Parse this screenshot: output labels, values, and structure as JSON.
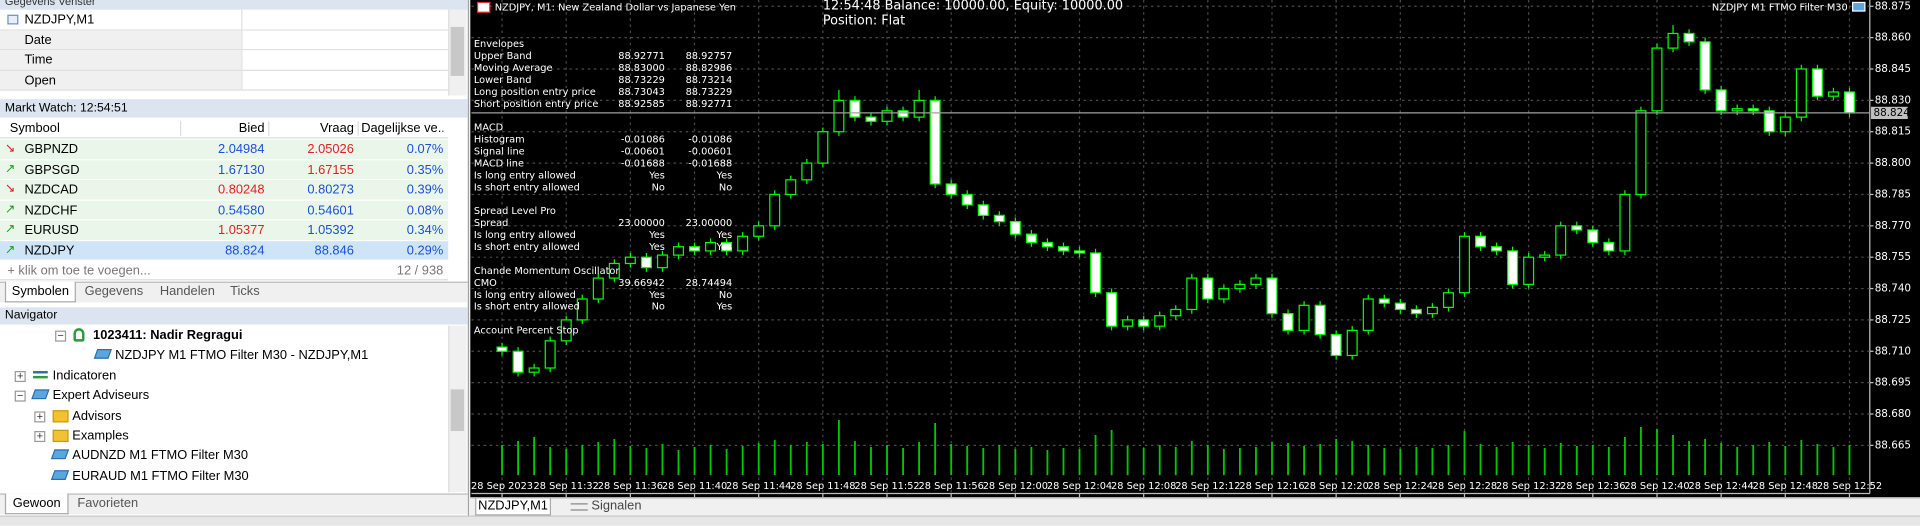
{
  "data_window": {
    "title": "Gegevens Venster",
    "symbol": "NZDJPY,M1",
    "rows": [
      "Date",
      "Time",
      "Open"
    ]
  },
  "market_watch": {
    "title": "Markt Watch: 12:54:51",
    "columns": [
      "Symbool",
      "Bied",
      "Vraag",
      "Dagelijkse ve..."
    ],
    "rows": [
      {
        "symbol": "GBPNZD",
        "bid": "2.04984",
        "ask": "2.05026",
        "change": "0.07%",
        "direction": "down",
        "bid_color": "#1a4fd6",
        "ask_color": "#e02020"
      },
      {
        "symbol": "GBPSGD",
        "bid": "1.67130",
        "ask": "1.67155",
        "change": "0.35%",
        "direction": "up",
        "bid_color": "#1a4fd6",
        "ask_color": "#e02020"
      },
      {
        "symbol": "NZDCAD",
        "bid": "0.80248",
        "ask": "0.80273",
        "change": "0.39%",
        "direction": "down",
        "bid_color": "#e02020",
        "ask_color": "#1a4fd6"
      },
      {
        "symbol": "NZDCHF",
        "bid": "0.54580",
        "ask": "0.54601",
        "change": "0.08%",
        "direction": "up",
        "bid_color": "#1a4fd6",
        "ask_color": "#1a4fd6"
      },
      {
        "symbol": "EURUSD",
        "bid": "1.05377",
        "ask": "1.05392",
        "change": "0.34%",
        "direction": "up",
        "bid_color": "#e02020",
        "ask_color": "#1a4fd6"
      },
      {
        "symbol": "NZDJPY",
        "bid": "88.824",
        "ask": "88.846",
        "change": "0.29%",
        "direction": "up",
        "bid_color": "#1a4fd6",
        "ask_color": "#1a4fd6",
        "selected": true
      }
    ],
    "add_row": "+ klik om toe te voegen...",
    "count": "12 / 938",
    "tabs": [
      "Symbolen",
      "Gegevens",
      "Handelen",
      "Ticks"
    ],
    "active_tab": 0
  },
  "navigator": {
    "title": "Navigator",
    "items": [
      {
        "label": "1023411: Nadir Regragui",
        "level": 2,
        "icon": "account",
        "expander": "minus",
        "bold": true
      },
      {
        "label": "NZDJPY  M1 FTMO Filter M30 - NZDJPY,M1",
        "level": 3,
        "icon": "expert"
      },
      {
        "label": "Indicatoren",
        "level": 0,
        "icon": "indicator",
        "expander": "plus"
      },
      {
        "label": "Expert Adviseurs",
        "level": 0,
        "icon": "expert",
        "expander": "minus"
      },
      {
        "label": "Advisors",
        "level": 1,
        "icon": "folder",
        "expander": "plus"
      },
      {
        "label": "Examples",
        "level": 1,
        "icon": "folder",
        "expander": "plus"
      },
      {
        "label": "AUDNZD  M1 FTMO Filter M30",
        "level": 1,
        "icon": "expert"
      },
      {
        "label": "EURAUD  M1 FTMO Filter M30",
        "level": 1,
        "icon": "expert"
      }
    ],
    "tabs": [
      "Gewoon",
      "Favorieten"
    ],
    "active_tab": 0
  },
  "bottom_tabs": [
    "NZDJPY,M1",
    "Signalen"
  ],
  "chart": {
    "type": "candlestick",
    "title": "NZDJPY, M1:  New Zealand Dollar vs Japanese Yen",
    "status": "12:54:48 Balance: 10000.00, Equity: 10000.00",
    "position": "Position: Flat",
    "expert": "NZDJPY  M1 FTMO Filter M30",
    "bull_color": "#000000",
    "bear_color": "#ffffff",
    "wick_color": "#00ff00",
    "volume_color": "#00c800",
    "background": "#000000",
    "grid": true,
    "ylim": [
      88.642,
      88.878
    ],
    "yticks": [
      88.875,
      {
        "value": 88.86,
        "label": "88.860"
      },
      88.845,
      {
        "value": 88.83,
        "label": "88.830"
      },
      88.815,
      {
        "value": 88.8,
        "label": "88.800"
      },
      88.785,
      {
        "value": 88.77,
        "label": "88.770"
      },
      88.755,
      {
        "value": 88.74,
        "label": "88.740"
      },
      88.725,
      {
        "value": 88.71,
        "label": "88.710"
      },
      88.695,
      {
        "value": 88.68,
        "label": "88.680"
      },
      88.665
    ],
    "bid": 88.824,
    "categories": [
      "28 Sep 2023",
      null,
      null,
      null,
      "28 Sep 11:32",
      null,
      null,
      null,
      "28 Sep 11:36",
      null,
      null,
      null,
      "28 Sep 11:40",
      null,
      null,
      null,
      "28 Sep 11:44",
      null,
      null,
      null,
      "28 Sep 11:48",
      null,
      null,
      null,
      "28 Sep 11:52",
      null,
      null,
      null,
      "28 Sep 11:56",
      null,
      null,
      null,
      "28 Sep 12:00",
      null,
      null,
      null,
      "28 Sep 12:04",
      null,
      null,
      null,
      "28 Sep 12:08",
      null,
      null,
      null,
      "28 Sep 12:12",
      null,
      null,
      null,
      "28 Sep 12:16",
      null,
      null,
      null,
      "28 Sep 12:20",
      null,
      null,
      null,
      "28 Sep 12:24",
      null,
      null,
      null,
      "28 Sep 12:28",
      null,
      null,
      null,
      "28 Sep 12:32",
      null,
      null,
      null,
      "28 Sep 12:36",
      null,
      null,
      null,
      "28 Sep 12:40",
      null,
      null,
      null,
      "28 Sep 12:44",
      null,
      null,
      null,
      "28 Sep 12:48",
      null,
      null,
      null,
      "28 Sep 12:52"
    ],
    "candles": [
      [
        88.712,
        88.714,
        88.708,
        88.71
      ],
      [
        88.71,
        88.712,
        88.698,
        88.7
      ],
      [
        88.7,
        88.704,
        88.698,
        88.702
      ],
      [
        88.702,
        88.717,
        88.7,
        88.715
      ],
      [
        88.715,
        88.727,
        88.713,
        88.725
      ],
      [
        88.725,
        88.737,
        88.723,
        88.735
      ],
      [
        88.735,
        88.747,
        88.733,
        88.745
      ],
      [
        88.745,
        88.754,
        88.743,
        88.752
      ],
      [
        88.752,
        88.757,
        88.75,
        88.755
      ],
      [
        88.755,
        88.757,
        88.748,
        88.75
      ],
      [
        88.75,
        88.758,
        88.748,
        88.756
      ],
      [
        88.756,
        88.762,
        88.754,
        88.76
      ],
      [
        88.76,
        88.762,
        88.756,
        88.758
      ],
      [
        88.758,
        88.764,
        88.756,
        88.762
      ],
      [
        88.762,
        88.764,
        88.756,
        88.758
      ],
      [
        88.758,
        88.767,
        88.756,
        88.765
      ],
      [
        88.765,
        88.772,
        88.763,
        88.77
      ],
      [
        88.77,
        88.787,
        88.768,
        88.785
      ],
      [
        88.785,
        88.794,
        88.783,
        88.792
      ],
      [
        88.792,
        88.802,
        88.79,
        88.8
      ],
      [
        88.8,
        88.817,
        88.798,
        88.815
      ],
      [
        88.815,
        88.835,
        88.813,
        88.83
      ],
      [
        88.83,
        88.832,
        88.82,
        88.822
      ],
      [
        88.822,
        88.824,
        88.818,
        88.82
      ],
      [
        88.82,
        88.827,
        88.818,
        88.825
      ],
      [
        88.825,
        88.827,
        88.82,
        88.822
      ],
      [
        88.822,
        88.835,
        88.82,
        88.83
      ],
      [
        88.83,
        88.832,
        88.788,
        88.79
      ],
      [
        88.79,
        88.792,
        88.783,
        88.785
      ],
      [
        88.785,
        88.787,
        88.778,
        88.78
      ],
      [
        88.78,
        88.782,
        88.773,
        88.775
      ],
      [
        88.775,
        88.777,
        88.77,
        88.772
      ],
      [
        88.772,
        88.774,
        88.764,
        88.766
      ],
      [
        88.766,
        88.768,
        88.76,
        88.762
      ],
      [
        88.762,
        88.764,
        88.758,
        88.76
      ],
      [
        88.76,
        88.762,
        88.756,
        88.758
      ],
      [
        88.758,
        88.76,
        88.755,
        88.757
      ],
      [
        88.757,
        88.759,
        88.736,
        88.738
      ],
      [
        88.738,
        88.74,
        88.72,
        88.722
      ],
      [
        88.722,
        88.727,
        88.72,
        88.725
      ],
      [
        88.725,
        88.727,
        88.72,
        88.722
      ],
      [
        88.722,
        88.729,
        88.72,
        88.727
      ],
      [
        88.727,
        88.732,
        88.725,
        88.73
      ],
      [
        88.73,
        88.747,
        88.728,
        88.745
      ],
      [
        88.745,
        88.747,
        88.733,
        88.735
      ],
      [
        88.735,
        88.742,
        88.733,
        88.74
      ],
      [
        88.74,
        88.744,
        88.738,
        88.742
      ],
      [
        88.742,
        88.747,
        88.74,
        88.745
      ],
      [
        88.745,
        88.747,
        88.726,
        88.728
      ],
      [
        88.728,
        88.73,
        88.718,
        88.72
      ],
      [
        88.72,
        88.734,
        88.718,
        88.732
      ],
      [
        88.732,
        88.734,
        88.716,
        88.718
      ],
      [
        88.718,
        88.72,
        88.706,
        88.708
      ],
      [
        88.708,
        88.722,
        88.706,
        88.72
      ],
      [
        88.72,
        88.737,
        88.718,
        88.735
      ],
      [
        88.735,
        88.737,
        88.731,
        88.733
      ],
      [
        88.733,
        88.735,
        88.728,
        88.73
      ],
      [
        88.73,
        88.732,
        88.726,
        88.728
      ],
      [
        88.728,
        88.733,
        88.726,
        88.731
      ],
      [
        88.731,
        88.74,
        88.729,
        88.738
      ],
      [
        88.738,
        88.767,
        88.736,
        88.765
      ],
      [
        88.765,
        88.767,
        88.758,
        88.76
      ],
      [
        88.76,
        88.762,
        88.756,
        88.758
      ],
      [
        88.758,
        88.76,
        88.74,
        88.742
      ],
      [
        88.742,
        88.757,
        88.74,
        88.755
      ],
      [
        88.755,
        88.758,
        88.753,
        88.756
      ],
      [
        88.756,
        88.772,
        88.754,
        88.77
      ],
      [
        88.77,
        88.772,
        88.766,
        88.768
      ],
      [
        88.768,
        88.77,
        88.76,
        88.762
      ],
      [
        88.762,
        88.764,
        88.756,
        88.758
      ],
      [
        88.758,
        88.787,
        88.756,
        88.785
      ],
      [
        88.785,
        88.827,
        88.783,
        88.825
      ],
      [
        88.825,
        88.857,
        88.823,
        88.855
      ],
      [
        88.855,
        88.866,
        88.853,
        88.862
      ],
      [
        88.862,
        88.864,
        88.856,
        88.858
      ],
      [
        88.858,
        88.86,
        88.833,
        88.835
      ],
      [
        88.835,
        88.837,
        88.823,
        88.825
      ],
      [
        88.825,
        88.828,
        88.823,
        88.826
      ],
      [
        88.826,
        88.828,
        88.823,
        88.825
      ],
      [
        88.825,
        88.827,
        88.813,
        88.815
      ],
      [
        88.815,
        88.824,
        88.813,
        88.822
      ],
      [
        88.822,
        88.847,
        88.82,
        88.845
      ],
      [
        88.845,
        88.847,
        88.83,
        88.832
      ],
      [
        88.832,
        88.836,
        88.83,
        88.834
      ],
      [
        88.834,
        88.836,
        88.822,
        88.824
      ]
    ],
    "volumes": [
      30,
      34,
      38,
      28,
      26,
      30,
      33,
      36,
      29,
      27,
      31,
      25,
      28,
      30,
      26,
      29,
      32,
      35,
      30,
      33,
      31,
      55,
      34,
      28,
      30,
      27,
      33,
      52,
      31,
      29,
      27,
      30,
      26,
      28,
      25,
      27,
      26,
      40,
      45,
      29,
      27,
      30,
      28,
      34,
      30,
      26,
      27,
      28,
      33,
      32,
      29,
      31,
      36,
      34,
      30,
      27,
      26,
      28,
      27,
      30,
      44,
      31,
      28,
      33,
      30,
      27,
      32,
      29,
      30,
      28,
      38,
      48,
      46,
      40,
      34,
      36,
      32,
      28,
      30,
      33,
      29,
      35,
      31,
      28,
      30
    ],
    "panel": [
      [
        "Envelopes"
      ],
      [
        "Upper Band",
        "88.92771",
        "88.92757"
      ],
      [
        "Moving Average",
        "88.83000",
        "88.82986"
      ],
      [
        "Lower Band",
        "88.73229",
        "88.73214"
      ],
      [
        "Long position entry price",
        "88.73043",
        "88.73229"
      ],
      [
        "Short position entry price",
        "88.92585",
        "88.92771"
      ],
      [],
      [
        "MACD"
      ],
      [
        "Histogram",
        "-0.01086",
        "-0.01086"
      ],
      [
        "Signal line",
        "-0.00601",
        "-0.00601"
      ],
      [
        "MACD line",
        "-0.01688",
        "-0.01688"
      ],
      [
        "Is long entry allowed",
        "Yes",
        "Yes"
      ],
      [
        "Is short entry allowed",
        "No",
        "No"
      ],
      [],
      [
        "Spread Level Pro"
      ],
      [
        "Spread",
        "23.00000",
        "23.00000"
      ],
      [
        "Is long entry allowed",
        "Yes",
        "Yes"
      ],
      [
        "Is short entry allowed",
        "Yes",
        "Yes"
      ],
      [],
      [
        "Chande Momentum Oscillator"
      ],
      [
        "CMO",
        "39.66942",
        "28.74494"
      ],
      [
        "Is long entry allowed",
        "Yes",
        "No"
      ],
      [
        "Is short entry allowed",
        "No",
        "Yes"
      ],
      [],
      [
        "Account Percent Stop"
      ]
    ]
  }
}
